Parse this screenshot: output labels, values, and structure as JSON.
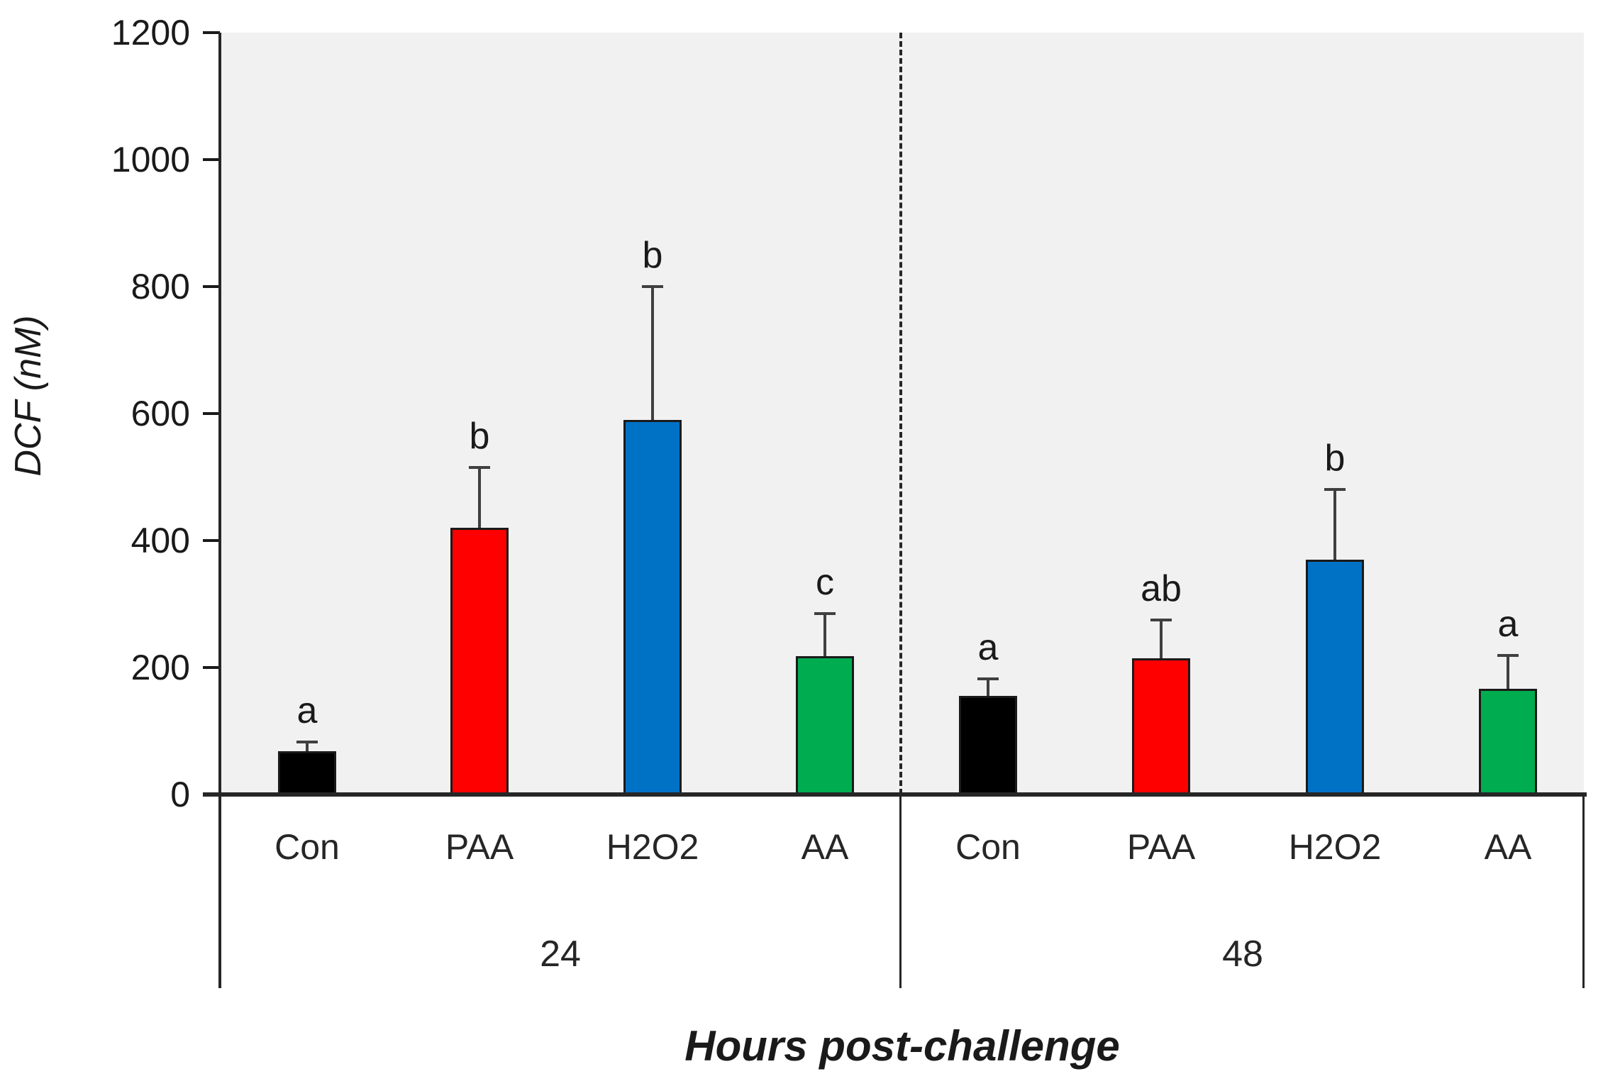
{
  "chart_data": {
    "type": "bar",
    "title": "",
    "xlabel": "Hours post-challenge",
    "ylabel": "DCF (nM)",
    "ylim": [
      0,
      1200
    ],
    "yticks": [
      0,
      200,
      400,
      600,
      800,
      1000,
      1200
    ],
    "grid": false,
    "legend": false,
    "group_divider_style": "dashed",
    "categories": [
      "Con",
      "PAA",
      "H2O2",
      "AA"
    ],
    "groups": [
      {
        "label": "24",
        "categories": [
          "Con",
          "PAA",
          "H2O2",
          "AA"
        ],
        "values": [
          68,
          420,
          590,
          218
        ],
        "errors_plus": [
          15,
          95,
          210,
          67
        ],
        "sig_letters": [
          "a",
          "b",
          "b",
          "c"
        ]
      },
      {
        "label": "48",
        "categories": [
          "Con",
          "PAA",
          "H2O2",
          "AA"
        ],
        "values": [
          155,
          215,
          370,
          167
        ],
        "errors_plus": [
          27,
          60,
          110,
          52
        ],
        "sig_letters": [
          "a",
          "ab",
          "b",
          "a"
        ]
      }
    ],
    "bar_colors": {
      "Con": "#000000",
      "PAA": "#ff0000",
      "H2O2": "#0072c6",
      "AA": "#00ac50"
    },
    "bar_border_color": "#1a1a1a",
    "error_bar_color": "#3f3f3f",
    "plot_background": "#f1f1f1",
    "axis_color": "#262626"
  }
}
